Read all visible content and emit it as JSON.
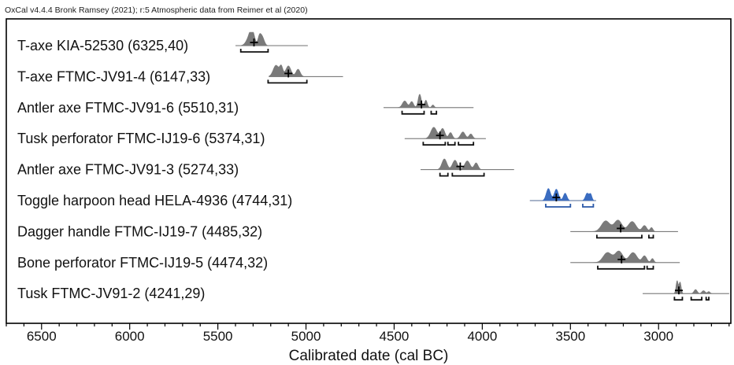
{
  "header": {
    "text": "OxCal v4.4.4 Bronk Ramsey (2021); r:5 Atmospheric data from Reimer et al (2020)"
  },
  "chart_data": {
    "type": "radiocarbon-calibration",
    "xlabel": "Calibrated date (cal BC)",
    "xlim": [
      6700,
      2590
    ],
    "xticks": [
      6500,
      6000,
      5500,
      5000,
      4500,
      4000,
      3500,
      3000
    ],
    "samples": [
      {
        "label": "T-axe KIA-52530 (6325,40)",
        "bp": 6325,
        "err": 40,
        "color": "#7a7a7a",
        "range": [
          5400,
          4990
        ],
        "peaks": [
          [
            5305,
            13,
            0.85
          ],
          [
            5250,
            12,
            0.7
          ],
          [
            5320,
            18,
            0.6
          ],
          [
            5265,
            8,
            0.5
          ]
        ],
        "median": 5295,
        "brackets": [
          [
            5370,
            5215
          ]
        ]
      },
      {
        "label": "T-axe FTMC-JV91-4 (6147,33)",
        "bp": 6147,
        "err": 33,
        "color": "#7a7a7a",
        "range": [
          5210,
          4790
        ],
        "peaks": [
          [
            5170,
            16,
            0.85
          ],
          [
            5100,
            15,
            0.8
          ],
          [
            5045,
            12,
            0.55
          ],
          [
            5140,
            9,
            0.7
          ]
        ],
        "median": 5100,
        "brackets": [
          [
            5215,
            4995
          ]
        ]
      },
      {
        "label": "Antler axe FTMC-JV91-6 (5510,31)",
        "bp": 5510,
        "err": 31,
        "color": "#7a7a7a",
        "range": [
          4560,
          4050
        ],
        "peaks": [
          [
            4440,
            13,
            0.5
          ],
          [
            4400,
            10,
            0.45
          ],
          [
            4355,
            9,
            1.0
          ],
          [
            4320,
            8,
            0.55
          ],
          [
            4280,
            7,
            0.2
          ]
        ],
        "median": 4345,
        "brackets": [
          [
            4455,
            4330
          ],
          [
            4290,
            4260
          ]
        ]
      },
      {
        "label": "Tusk perforator FTMC-IJ19-6 (5374,31)",
        "bp": 5374,
        "err": 31,
        "color": "#7a7a7a",
        "range": [
          4440,
          3980
        ],
        "peaks": [
          [
            4275,
            17,
            0.85
          ],
          [
            4225,
            13,
            0.75
          ],
          [
            4180,
            10,
            0.45
          ],
          [
            4110,
            13,
            0.5
          ],
          [
            4065,
            10,
            0.35
          ]
        ],
        "median": 4240,
        "brackets": [
          [
            4335,
            4210
          ],
          [
            4195,
            4155
          ],
          [
            4135,
            4050
          ]
        ]
      },
      {
        "label": "Antler axe FTMC-JV91-3 (5274,33)",
        "bp": 5274,
        "err": 33,
        "color": "#7a7a7a",
        "range": [
          4350,
          3820
        ],
        "peaks": [
          [
            4215,
            14,
            0.8
          ],
          [
            4155,
            14,
            0.7
          ],
          [
            4085,
            15,
            0.65
          ],
          [
            4035,
            11,
            0.5
          ]
        ],
        "median": 4125,
        "brackets": [
          [
            4240,
            4195
          ],
          [
            4170,
            3990
          ]
        ]
      },
      {
        "label": "Toggle harpoon head HELA-4936 (4744,31)",
        "bp": 4744,
        "err": 31,
        "color": "#3a6cc0",
        "range": [
          3730,
          3355
        ],
        "peaks": [
          [
            3625,
            12,
            0.9
          ],
          [
            3580,
            12,
            0.85
          ],
          [
            3530,
            10,
            0.55
          ],
          [
            3405,
            10,
            0.55
          ],
          [
            3385,
            7,
            0.45
          ]
        ],
        "median": 3580,
        "brackets": [
          [
            3640,
            3500
          ],
          [
            3430,
            3370
          ]
        ]
      },
      {
        "label": "Dagger handle FTMC-IJ19-7 (4485,32)",
        "bp": 4485,
        "err": 32,
        "color": "#7a7a7a",
        "range": [
          3500,
          2890
        ],
        "peaks": [
          [
            3300,
            24,
            0.8
          ],
          [
            3230,
            22,
            0.85
          ],
          [
            3150,
            22,
            0.75
          ],
          [
            3080,
            13,
            0.45
          ],
          [
            3040,
            8,
            0.3
          ]
        ],
        "median": 3215,
        "brackets": [
          [
            3350,
            3095
          ],
          [
            3055,
            3030
          ]
        ]
      },
      {
        "label": "Bone perforator FTMC-IJ19-5 (4474,32)",
        "bp": 4474,
        "err": 32,
        "color": "#7a7a7a",
        "range": [
          3500,
          2880
        ],
        "peaks": [
          [
            3290,
            24,
            0.75
          ],
          [
            3225,
            22,
            0.85
          ],
          [
            3145,
            22,
            0.75
          ],
          [
            3080,
            13,
            0.5
          ],
          [
            3035,
            8,
            0.3
          ]
        ],
        "median": 3210,
        "brackets": [
          [
            3345,
            3080
          ],
          [
            3065,
            3030
          ]
        ]
      },
      {
        "label": "Tusk FTMC-JV91-2 (4241,29)",
        "bp": 4241,
        "err": 29,
        "color": "#7a7a7a",
        "range": [
          3090,
          2600
        ],
        "peaks": [
          [
            2895,
            6,
            0.95
          ],
          [
            2878,
            6,
            0.85
          ],
          [
            2790,
            9,
            0.3
          ],
          [
            2745,
            9,
            0.22
          ],
          [
            2715,
            7,
            0.15
          ]
        ],
        "median": 2885,
        "brackets": [
          [
            2910,
            2865
          ],
          [
            2815,
            2755
          ],
          [
            2730,
            2715
          ]
        ]
      }
    ]
  }
}
